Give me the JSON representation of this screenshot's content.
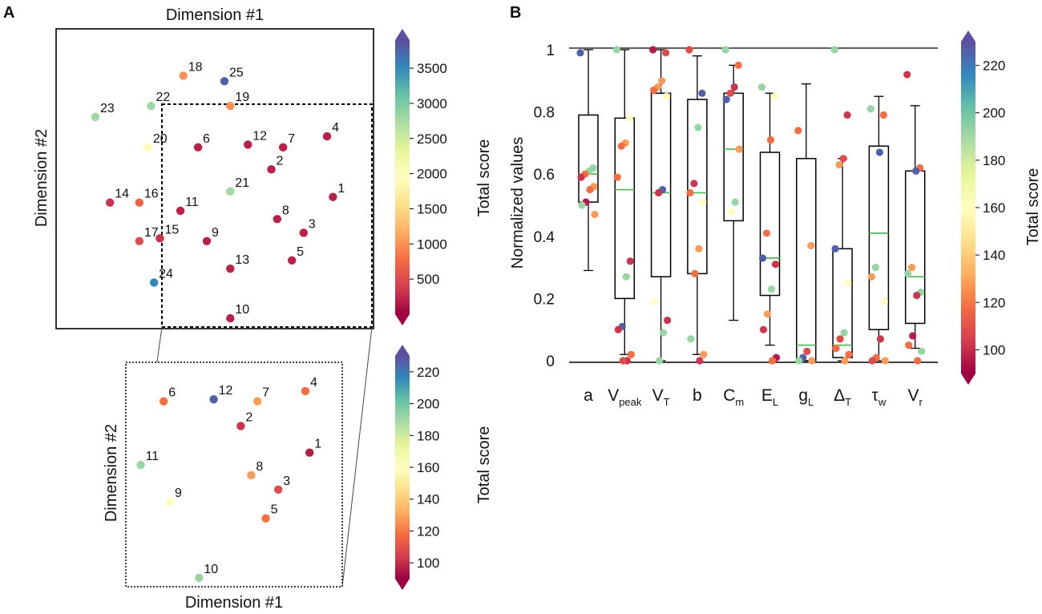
{
  "panels": {
    "a_label": "A",
    "b_label": "B"
  },
  "colormap": [
    "#9e0142",
    "#d53e4f",
    "#f46d43",
    "#fdae61",
    "#fee08b",
    "#ffffbf",
    "#e6f598",
    "#abdda4",
    "#66c2a5",
    "#3288bd",
    "#5e4fa2"
  ],
  "chart_data": [
    {
      "id": "scatter-main",
      "type": "scatter",
      "title": "",
      "xlabel": "Dimension #1",
      "ylabel": "Dimension #2",
      "xlim": [
        0,
        100
      ],
      "ylim": [
        0,
        100
      ],
      "colorbar": {
        "label": "Total score",
        "range": [
          0,
          3900
        ],
        "ticks": [
          500,
          1000,
          1500,
          2000,
          2500,
          3000,
          3500
        ],
        "tick_labels": [
          "500",
          "1000",
          "1500",
          "2000",
          "2500",
          "3000",
          "3500"
        ]
      },
      "points": [
        {
          "label": "18",
          "x": 39,
          "y": 90,
          "score": 1000
        },
        {
          "label": "25",
          "x": 53,
          "y": 88,
          "score": 3800
        },
        {
          "label": "19",
          "x": 55,
          "y": 79,
          "score": 1000
        },
        {
          "label": "23",
          "x": 9,
          "y": 75,
          "score": 2800
        },
        {
          "label": "22",
          "x": 28,
          "y": 79,
          "score": 2800
        },
        {
          "label": "4",
          "x": 88,
          "y": 68,
          "score": 200
        },
        {
          "label": "12",
          "x": 61,
          "y": 65,
          "score": 200
        },
        {
          "label": "6",
          "x": 44,
          "y": 64,
          "score": 200
        },
        {
          "label": "7",
          "x": 73,
          "y": 64,
          "score": 200
        },
        {
          "label": "20",
          "x": 27,
          "y": 64,
          "score": 2000
        },
        {
          "label": "2",
          "x": 69,
          "y": 56,
          "score": 200
        },
        {
          "label": "21",
          "x": 55,
          "y": 48,
          "score": 2800
        },
        {
          "label": "14",
          "x": 14,
          "y": 44,
          "score": 300
        },
        {
          "label": "16",
          "x": 24,
          "y": 44,
          "score": 700
        },
        {
          "label": "11",
          "x": 38,
          "y": 41,
          "score": 200
        },
        {
          "label": "1",
          "x": 90,
          "y": 46,
          "score": 200
        },
        {
          "label": "8",
          "x": 71,
          "y": 38,
          "score": 200
        },
        {
          "label": "3",
          "x": 80,
          "y": 33,
          "score": 200
        },
        {
          "label": "17",
          "x": 24,
          "y": 30,
          "score": 500
        },
        {
          "label": "15",
          "x": 31,
          "y": 31,
          "score": 300
        },
        {
          "label": "9",
          "x": 47,
          "y": 30,
          "score": 200
        },
        {
          "label": "5",
          "x": 76,
          "y": 23,
          "score": 200
        },
        {
          "label": "13",
          "x": 55,
          "y": 20,
          "score": 200
        },
        {
          "label": "24",
          "x": 29,
          "y": 15,
          "score": 3500
        },
        {
          "label": "10",
          "x": 55,
          "y": 2,
          "score": 200
        }
      ]
    },
    {
      "id": "scatter-zoom",
      "type": "scatter",
      "title": "",
      "xlabel": "Dimension #1",
      "ylabel": "Dimension #2",
      "xlim": [
        0,
        100
      ],
      "ylim": [
        0,
        100
      ],
      "colorbar": {
        "label": "Total score",
        "range": [
          90,
          230
        ],
        "ticks": [
          100,
          120,
          140,
          160,
          180,
          200,
          220
        ],
        "tick_labels": [
          "100",
          "120",
          "140",
          "160",
          "180",
          "200",
          "220"
        ]
      },
      "points": [
        {
          "label": "4",
          "x": 85,
          "y": 93,
          "score": 118
        },
        {
          "label": "12",
          "x": 41,
          "y": 89,
          "score": 226
        },
        {
          "label": "6",
          "x": 17,
          "y": 88,
          "score": 118
        },
        {
          "label": "7",
          "x": 62,
          "y": 88,
          "score": 128
        },
        {
          "label": "2",
          "x": 54,
          "y": 76,
          "score": 102
        },
        {
          "label": "1",
          "x": 87,
          "y": 63,
          "score": 96
        },
        {
          "label": "11",
          "x": 6,
          "y": 57,
          "score": 192
        },
        {
          "label": "8",
          "x": 59,
          "y": 52,
          "score": 128
        },
        {
          "label": "3",
          "x": 72,
          "y": 45,
          "score": 108
        },
        {
          "label": "9",
          "x": 20,
          "y": 39,
          "score": 160
        },
        {
          "label": "5",
          "x": 66,
          "y": 31,
          "score": 118
        },
        {
          "label": "10",
          "x": 34,
          "y": 2,
          "score": 192
        }
      ]
    },
    {
      "id": "boxplot",
      "type": "box",
      "title": "",
      "xlabel": "",
      "ylabel": "Normalized values",
      "ylim": [
        0,
        1
      ],
      "yticks": [
        0,
        0.2,
        0.4,
        0.6,
        0.8,
        1
      ],
      "ytick_labels": [
        "0",
        "0.2",
        "0.4",
        "0.6",
        "0.8",
        "1"
      ],
      "colorbar": {
        "label": "Total score",
        "range": [
          90,
          230
        ],
        "ticks": [
          100,
          120,
          140,
          160,
          180,
          200,
          220
        ],
        "tick_labels": [
          "100",
          "120",
          "140",
          "160",
          "180",
          "200",
          "220"
        ]
      },
      "categories": [
        {
          "name": "a",
          "sub": "",
          "wmin": 0.29,
          "q1": 0.51,
          "median": 0.6,
          "q3": 0.79,
          "wmax": 1.0,
          "points": [
            [
              0.99,
              226
            ],
            [
              0.62,
              192
            ],
            [
              0.61,
              192
            ],
            [
              0.6,
              118
            ],
            [
              0.59,
              102
            ],
            [
              0.56,
              128
            ],
            [
              0.55,
              118
            ],
            [
              0.51,
              96
            ],
            [
              0.5,
              192
            ],
            [
              0.47,
              128
            ]
          ]
        },
        {
          "name": "V",
          "sub": "peak",
          "wmin": 0.02,
          "q1": 0.2,
          "median": 0.55,
          "q3": 0.78,
          "wmax": 1.0,
          "points": [
            [
              1.0,
              192
            ],
            [
              0.78,
              160
            ],
            [
              0.7,
              128
            ],
            [
              0.69,
              118
            ],
            [
              0.59,
              118
            ],
            [
              0.32,
              102
            ],
            [
              0.27,
              192
            ],
            [
              0.11,
              226
            ],
            [
              0.1,
              102
            ],
            [
              0.02,
              118
            ],
            [
              0.0,
              102
            ],
            [
              0.0,
              108
            ]
          ]
        },
        {
          "name": "V",
          "sub": "T",
          "wmin": 0.0,
          "q1": 0.27,
          "median": 0.54,
          "q3": 0.86,
          "wmax": 1.0,
          "points": [
            [
              1.0,
              96
            ],
            [
              0.99,
              108
            ],
            [
              0.9,
              128
            ],
            [
              0.88,
              128
            ],
            [
              0.87,
              118
            ],
            [
              0.85,
              160
            ],
            [
              0.55,
              226
            ],
            [
              0.54,
              102
            ],
            [
              0.19,
              160
            ],
            [
              0.13,
              102
            ],
            [
              0.09,
              192
            ],
            [
              0.0,
              192
            ]
          ]
        },
        {
          "name": "b",
          "sub": "",
          "wmin": 0.02,
          "q1": 0.28,
          "median": 0.54,
          "q3": 0.84,
          "wmax": 0.98,
          "points": [
            [
              1.0,
              108
            ],
            [
              0.86,
              226
            ],
            [
              0.75,
              192
            ],
            [
              0.57,
              102
            ],
            [
              0.54,
              118
            ],
            [
              0.51,
              160
            ],
            [
              0.36,
              128
            ],
            [
              0.28,
              118
            ],
            [
              0.07,
              192
            ],
            [
              0.02,
              128
            ],
            [
              0.0,
              102
            ]
          ]
        },
        {
          "name": "C",
          "sub": "m",
          "wmin": 0.13,
          "q1": 0.45,
          "median": 0.68,
          "q3": 0.86,
          "wmax": 0.95,
          "points": [
            [
              1.0,
              192
            ],
            [
              0.95,
              118
            ],
            [
              0.88,
              102
            ],
            [
              0.86,
              108
            ],
            [
              0.84,
              226
            ],
            [
              0.68,
              128
            ],
            [
              0.51,
              192
            ],
            [
              0.48,
              160
            ]
          ]
        },
        {
          "name": "E",
          "sub": "L",
          "wmin": 0.05,
          "q1": 0.21,
          "median": 0.33,
          "q3": 0.67,
          "wmax": 0.86,
          "points": [
            [
              0.88,
              192
            ],
            [
              0.85,
              160
            ],
            [
              0.71,
              118
            ],
            [
              0.41,
              118
            ],
            [
              0.33,
              226
            ],
            [
              0.31,
              102
            ],
            [
              0.23,
              192
            ],
            [
              0.15,
              128
            ],
            [
              0.1,
              102
            ],
            [
              0.01,
              96
            ],
            [
              0.0,
              118
            ]
          ]
        },
        {
          "name": "g",
          "sub": "L",
          "wmin": 0.0,
          "q1": 0.0,
          "median": 0.05,
          "q3": 0.65,
          "wmax": 0.89,
          "points": [
            [
              0.74,
              118
            ],
            [
              0.37,
              128
            ],
            [
              0.03,
              108
            ],
            [
              0.01,
              226
            ],
            [
              0.0,
              192
            ],
            [
              0.0,
              128
            ]
          ]
        },
        {
          "name": "Δ",
          "sub": "T",
          "wmin": 0.0,
          "q1": 0.01,
          "median": 0.05,
          "q3": 0.36,
          "wmax": 0.65,
          "points": [
            [
              1.0,
              192
            ],
            [
              0.79,
              102
            ],
            [
              0.65,
              108
            ],
            [
              0.63,
              128
            ],
            [
              0.36,
              226
            ],
            [
              0.25,
              160
            ],
            [
              0.09,
              192
            ],
            [
              0.07,
              108
            ],
            [
              0.04,
              118
            ],
            [
              0.02,
              118
            ],
            [
              0.0,
              128
            ]
          ]
        },
        {
          "name": "τ",
          "sub": "w",
          "wmin": 0.0,
          "q1": 0.1,
          "median": 0.41,
          "q3": 0.69,
          "wmax": 0.85,
          "points": [
            [
              0.81,
              192
            ],
            [
              0.79,
              118
            ],
            [
              0.67,
              226
            ],
            [
              0.3,
              192
            ],
            [
              0.27,
              128
            ],
            [
              0.19,
              160
            ],
            [
              0.07,
              102
            ],
            [
              0.01,
              118
            ],
            [
              0.0,
              108
            ],
            [
              0.0,
              128
            ]
          ]
        },
        {
          "name": "V",
          "sub": "r",
          "wmin": 0.04,
          "q1": 0.12,
          "median": 0.27,
          "q3": 0.61,
          "wmax": 0.82,
          "points": [
            [
              0.92,
              102
            ],
            [
              0.62,
              118
            ],
            [
              0.61,
              226
            ],
            [
              0.3,
              128
            ],
            [
              0.28,
              192
            ],
            [
              0.22,
              192
            ],
            [
              0.21,
              102
            ],
            [
              0.08,
              96
            ],
            [
              0.05,
              118
            ],
            [
              0.03,
              192
            ],
            [
              0.0,
              118
            ]
          ]
        }
      ]
    }
  ]
}
